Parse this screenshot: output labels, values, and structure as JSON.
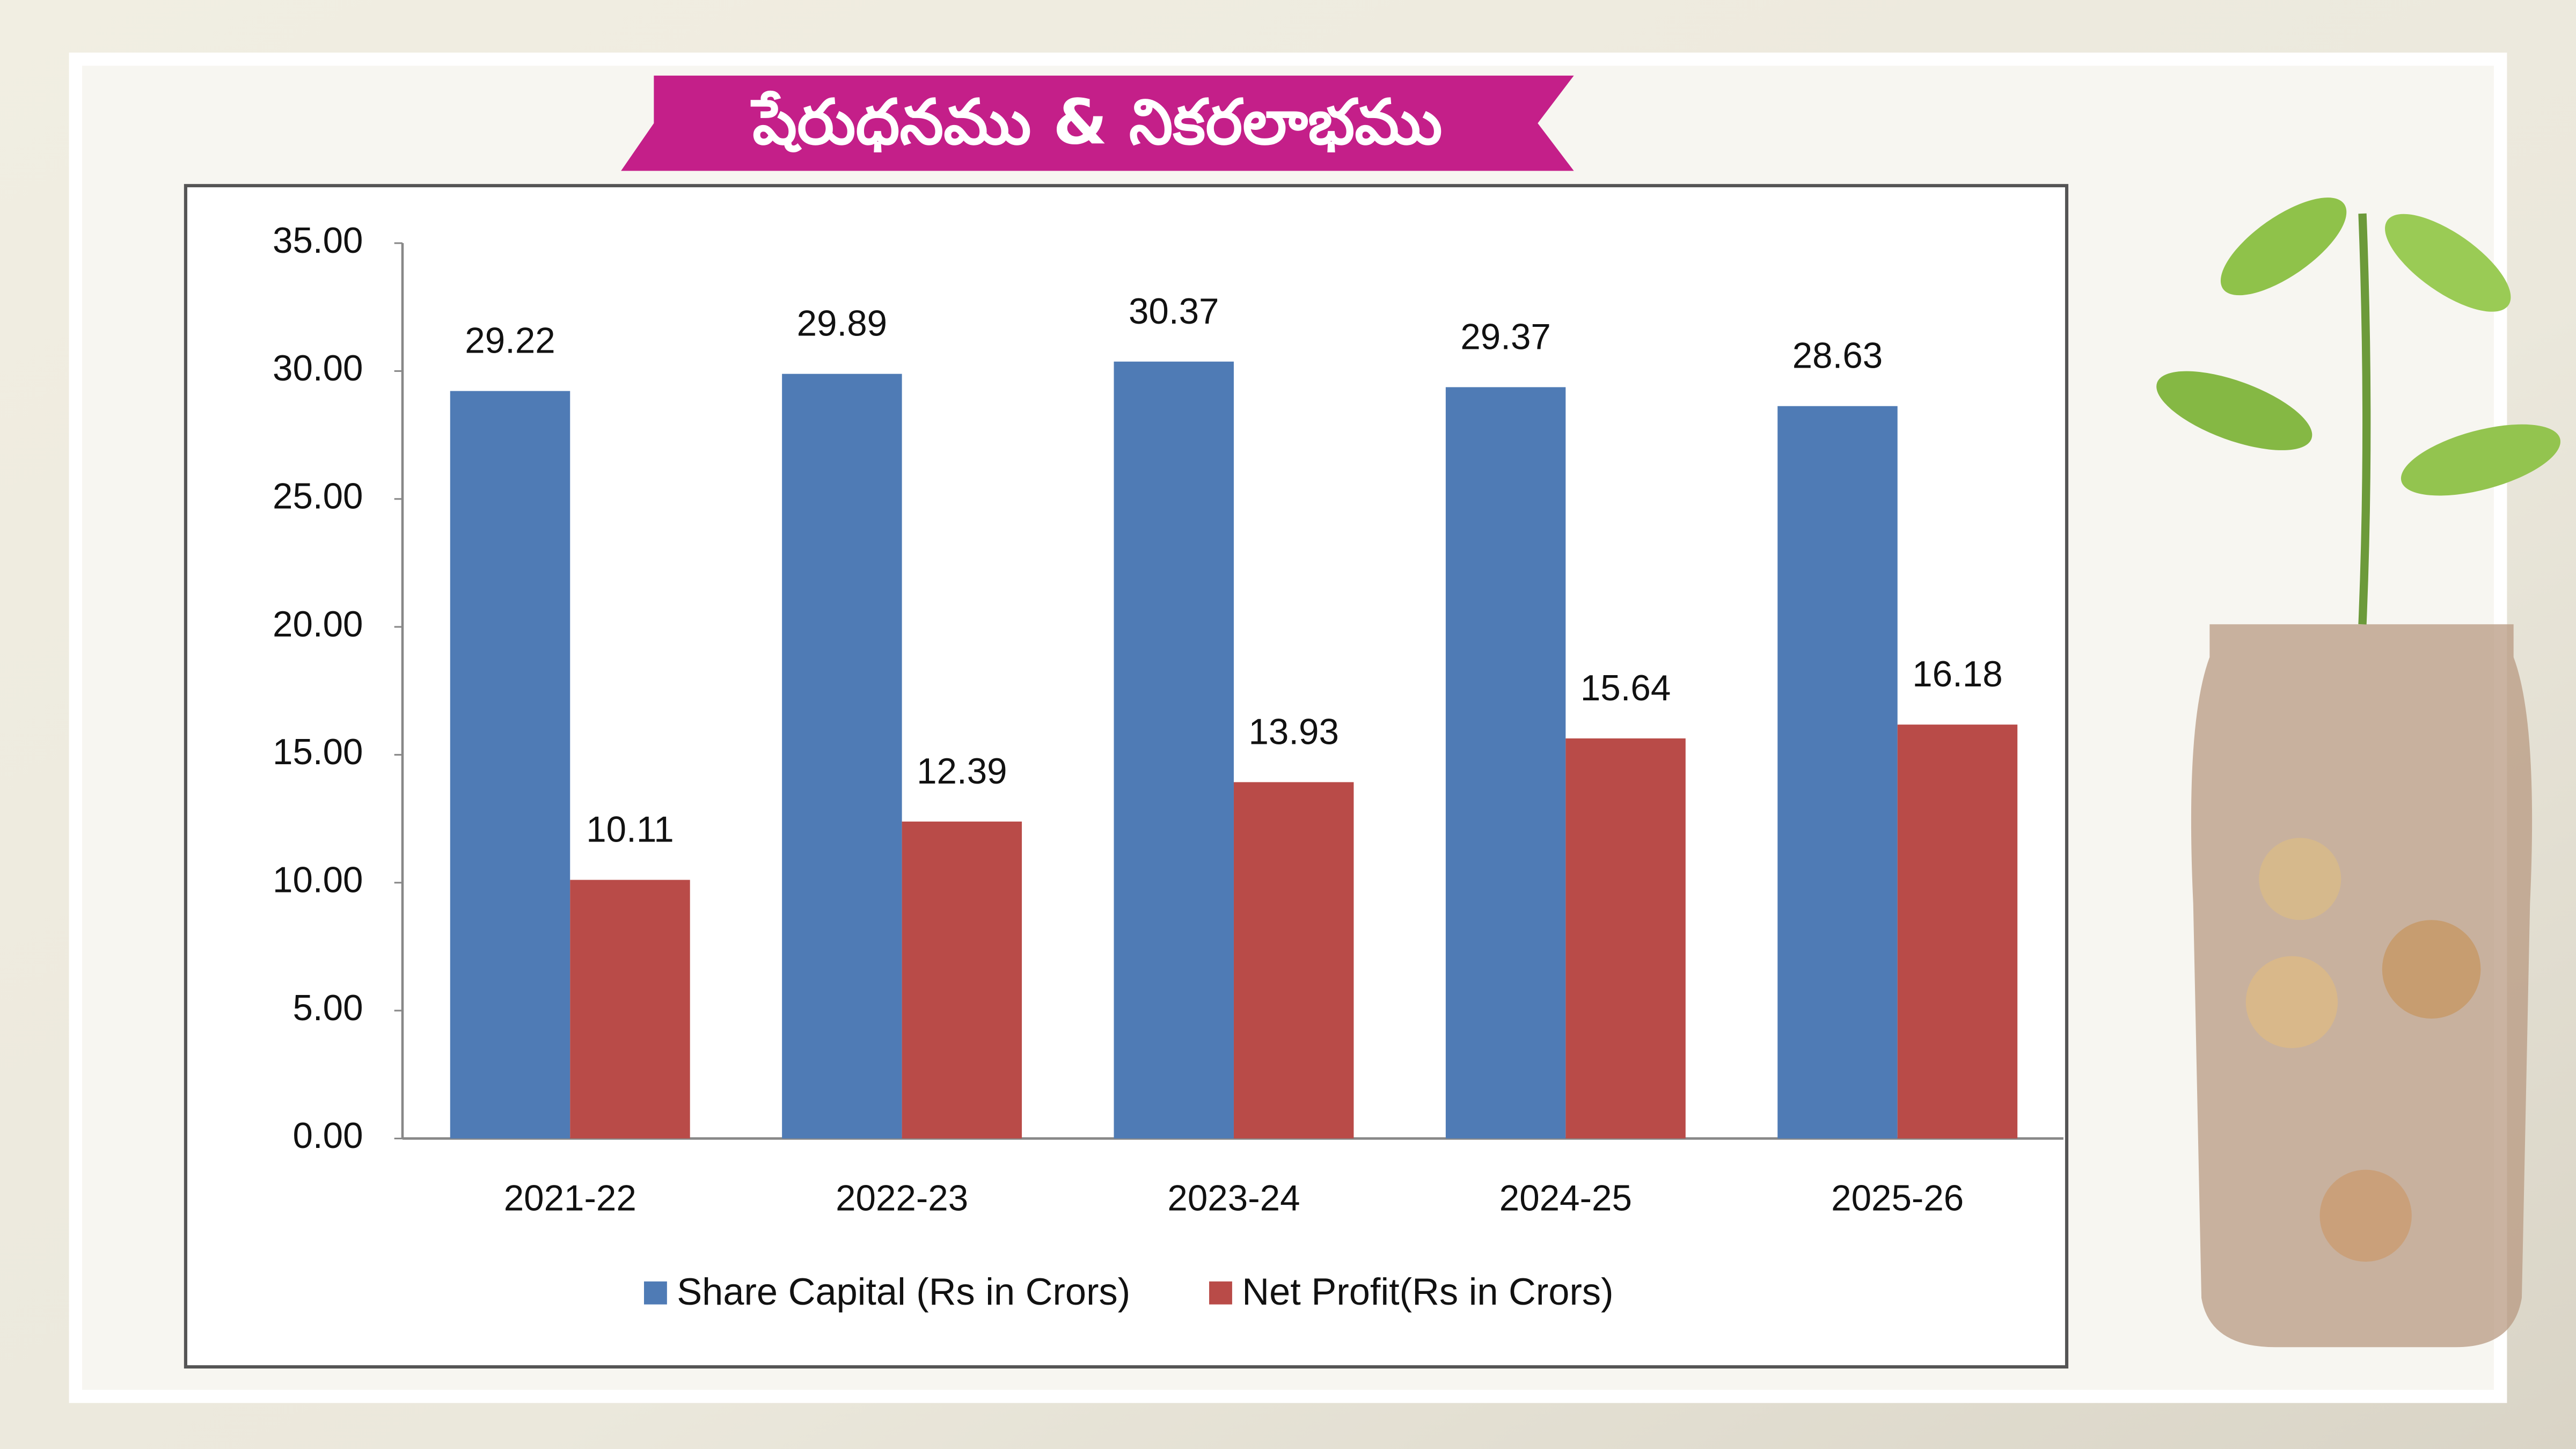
{
  "chart_data": {
    "type": "bar",
    "title": "షేరుధనము & నికరలాభము",
    "categories": [
      "2021-22",
      "2022-23",
      "2023-24",
      "2024-25",
      "2025-26"
    ],
    "series": [
      {
        "name": "Share Capital (Rs in Crors)",
        "color": "#4f7bb5",
        "values": [
          29.22,
          29.89,
          30.37,
          29.37,
          28.63
        ]
      },
      {
        "name": "Net Profit(Rs in Crors)",
        "color": "#b94b48",
        "values": [
          10.11,
          12.39,
          13.93,
          15.64,
          16.18
        ]
      }
    ],
    "ylim": [
      0,
      35
    ],
    "yticks": [
      {
        "value": 0,
        "label": "0.00"
      },
      {
        "value": 5,
        "label": "5.00"
      },
      {
        "value": 10,
        "label": "10.00"
      },
      {
        "value": 15,
        "label": "15.00"
      },
      {
        "value": 20,
        "label": "20.00"
      },
      {
        "value": 25,
        "label": "25.00"
      },
      {
        "value": 30,
        "label": "30.00"
      },
      {
        "value": 35,
        "label": "35.00"
      }
    ],
    "grid": false,
    "legend": "bottom"
  }
}
